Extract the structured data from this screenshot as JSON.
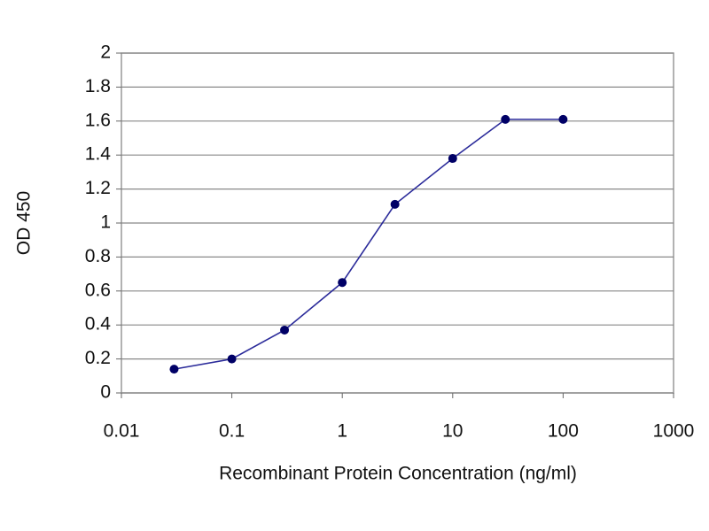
{
  "chart_data": {
    "type": "line",
    "xlabel": "Recombinant Protein Concentration (ng/ml)",
    "ylabel": "OD 450",
    "x": [
      0.03,
      0.1,
      0.3,
      1,
      3,
      10,
      30,
      100
    ],
    "values": [
      0.14,
      0.2,
      0.37,
      0.65,
      1.11,
      1.38,
      1.61,
      1.61
    ],
    "color": "#2b2b9a",
    "marker_color": "#000066",
    "xscale": "log",
    "xlim": [
      0.01,
      1000
    ],
    "xticks": [
      0.01,
      0.1,
      1,
      10,
      100,
      1000
    ],
    "ylim": [
      0,
      2
    ],
    "yticks": [
      0,
      0.2,
      0.4,
      0.6,
      0.8,
      1,
      1.2,
      1.4,
      1.6,
      1.8,
      2
    ],
    "grid": true
  }
}
